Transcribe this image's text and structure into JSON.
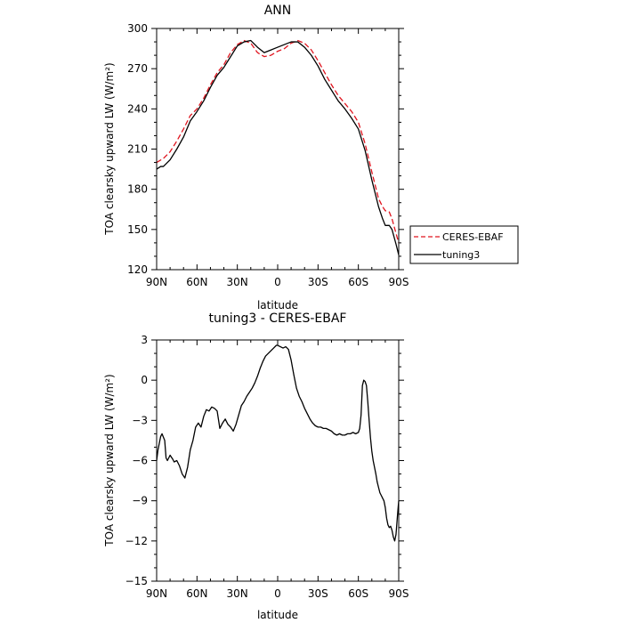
{
  "chart_data": [
    {
      "type": "line",
      "title": "ANN",
      "xlabel": "latitude",
      "ylabel": "TOA clearsky upward LW (W/m²)",
      "xlim": [
        90,
        -90
      ],
      "ylim": [
        120,
        300
      ],
      "x_ticks": [
        90,
        60,
        30,
        0,
        -30,
        -60,
        -90
      ],
      "x_tick_labels": [
        "90N",
        "60N",
        "30N",
        "0",
        "30S",
        "60S",
        "90S"
      ],
      "y_ticks": [
        120,
        150,
        180,
        210,
        240,
        270,
        300
      ],
      "y_tick_labels": [
        "120",
        "150",
        "180",
        "210",
        "240",
        "270",
        "300"
      ],
      "legend_position": "right",
      "series": [
        {
          "name": "CERES-EBAF",
          "color": "#e0141e",
          "dash": "dashed",
          "x": [
            90,
            85,
            80,
            75,
            70,
            65,
            60,
            55,
            50,
            45,
            40,
            35,
            30,
            25,
            20,
            15,
            10,
            5,
            0,
            -5,
            -10,
            -15,
            -20,
            -25,
            -30,
            -35,
            -40,
            -45,
            -50,
            -55,
            -60,
            -65,
            -70,
            -75,
            -78,
            -80,
            -83,
            -85,
            -88,
            -90
          ],
          "y": [
            200,
            203,
            208,
            216,
            225,
            235,
            240,
            248,
            258,
            267,
            273,
            282,
            288,
            291,
            289,
            282,
            279,
            280,
            283,
            285,
            289,
            291,
            289,
            284,
            276,
            267,
            258,
            250,
            244,
            238,
            230,
            214,
            193,
            173,
            167,
            164,
            163,
            158,
            147,
            140
          ]
        },
        {
          "name": "tuning3",
          "color": "#000000",
          "dash": "solid",
          "x": [
            90,
            87,
            85,
            80,
            75,
            70,
            65,
            60,
            55,
            50,
            45,
            40,
            35,
            30,
            25,
            20,
            15,
            10,
            5,
            0,
            -5,
            -10,
            -15,
            -20,
            -25,
            -30,
            -35,
            -40,
            -45,
            -50,
            -55,
            -60,
            -65,
            -70,
            -75,
            -78,
            -80,
            -83,
            -85,
            -88,
            -90
          ],
          "y": [
            195,
            197,
            197,
            202,
            210,
            219,
            231,
            238,
            246,
            256,
            265,
            271,
            279,
            287,
            290,
            291,
            286,
            282,
            284,
            286,
            288,
            290,
            290,
            286,
            280,
            272,
            262,
            254,
            246,
            240,
            233,
            225,
            209,
            187,
            167,
            158,
            153,
            153,
            150,
            139,
            131
          ]
        }
      ]
    },
    {
      "type": "line",
      "title": "tuning3 - CERES-EBAF",
      "xlabel": "latitude",
      "ylabel": "TOA clearsky upward LW (W/m²)",
      "xlim": [
        90,
        -90
      ],
      "ylim": [
        -15,
        3
      ],
      "x_ticks": [
        90,
        60,
        30,
        0,
        -30,
        -60,
        -90
      ],
      "x_tick_labels": [
        "90N",
        "60N",
        "30N",
        "0",
        "30S",
        "60S",
        "90S"
      ],
      "y_ticks": [
        -15,
        -12,
        -9,
        -6,
        -3,
        0,
        3
      ],
      "y_tick_labels": [
        "−15",
        "−12",
        "−9",
        "−6",
        "−3",
        "0",
        "3"
      ],
      "series": [
        {
          "color": "#000000",
          "dash": "solid",
          "x": [
            90,
            89,
            87,
            86,
            84,
            83,
            82,
            80,
            78,
            77,
            75,
            73,
            71,
            69,
            67,
            65,
            63,
            61,
            59,
            57,
            55,
            53,
            51,
            49,
            47,
            45,
            43,
            41,
            39,
            37,
            35,
            33,
            31,
            29,
            27,
            25,
            23,
            21,
            19,
            17,
            15,
            13,
            11,
            9,
            7,
            5,
            3,
            1,
            0,
            -2,
            -4,
            -6,
            -8,
            -10,
            -12,
            -14,
            -16,
            -18,
            -20,
            -22,
            -24,
            -26,
            -28,
            -30,
            -32,
            -34,
            -36,
            -38,
            -40,
            -42,
            -44,
            -46,
            -48,
            -50,
            -52,
            -54,
            -56,
            -58,
            -60,
            -61,
            -62,
            -63,
            -64,
            -65,
            -66,
            -67,
            -68,
            -69,
            -70,
            -71,
            -72,
            -73,
            -74,
            -75,
            -76,
            -77,
            -78,
            -79,
            -80,
            -81,
            -82,
            -83,
            -84,
            -85,
            -86,
            -87,
            -88,
            -89,
            -90
          ],
          "y": [
            -6.0,
            -5.2,
            -4.2,
            -4.0,
            -4.5,
            -5.8,
            -6.0,
            -5.6,
            -5.9,
            -6.1,
            -6.0,
            -6.4,
            -7.0,
            -7.3,
            -6.5,
            -5.2,
            -4.5,
            -3.5,
            -3.2,
            -3.5,
            -2.7,
            -2.2,
            -2.3,
            -2.0,
            -2.1,
            -2.3,
            -3.6,
            -3.2,
            -2.9,
            -3.3,
            -3.5,
            -3.8,
            -3.3,
            -2.6,
            -1.9,
            -1.6,
            -1.2,
            -0.9,
            -0.6,
            -0.2,
            0.3,
            0.9,
            1.4,
            1.8,
            2.0,
            2.2,
            2.4,
            2.6,
            2.6,
            2.5,
            2.4,
            2.5,
            2.3,
            1.5,
            0.4,
            -0.6,
            -1.2,
            -1.6,
            -2.1,
            -2.5,
            -2.9,
            -3.2,
            -3.4,
            -3.5,
            -3.5,
            -3.6,
            -3.6,
            -3.7,
            -3.8,
            -4.0,
            -4.1,
            -4.0,
            -4.1,
            -4.1,
            -4.0,
            -4.0,
            -3.9,
            -4.0,
            -3.9,
            -3.6,
            -2.6,
            -0.4,
            0.0,
            -0.1,
            -0.4,
            -1.6,
            -3.0,
            -4.3,
            -5.3,
            -6.0,
            -6.5,
            -7.0,
            -7.6,
            -8.0,
            -8.4,
            -8.6,
            -8.8,
            -9.0,
            -9.5,
            -10.3,
            -10.8,
            -11.0,
            -10.9,
            -11.2,
            -11.7,
            -12.0,
            -11.5,
            -10.2,
            -9.0
          ]
        }
      ]
    }
  ]
}
